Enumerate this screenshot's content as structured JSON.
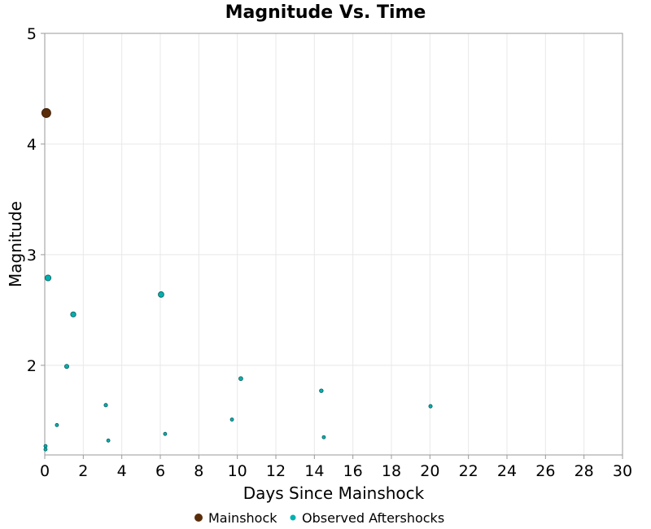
{
  "chart_data": {
    "type": "scatter",
    "title": "Magnitude Vs. Time",
    "xlabel": "Days Since Mainshock",
    "ylabel": "Magnitude",
    "xlim": [
      0,
      30
    ],
    "ylim": [
      1.19,
      5
    ],
    "xticks": [
      0,
      2,
      4,
      6,
      8,
      10,
      12,
      14,
      16,
      18,
      20,
      22,
      24,
      26,
      28,
      30
    ],
    "yticks": [
      2,
      3,
      4,
      5
    ],
    "grid": true,
    "legend_position": "bottom",
    "series": [
      {
        "name": "Mainshock",
        "color": "#5a2d0a",
        "points": [
          [
            0.08,
            4.28
          ]
        ]
      },
      {
        "name": "Observed Aftershocks",
        "color": "#00b0b0",
        "points": [
          [
            0.17,
            2.79
          ],
          [
            1.48,
            2.46
          ],
          [
            1.14,
            1.99
          ],
          [
            6.04,
            2.64
          ],
          [
            10.18,
            1.88
          ],
          [
            14.36,
            1.77
          ],
          [
            20.03,
            1.63
          ],
          [
            3.17,
            1.64
          ],
          [
            0.63,
            1.46
          ],
          [
            9.72,
            1.51
          ],
          [
            6.25,
            1.38
          ],
          [
            3.3,
            1.32
          ],
          [
            14.49,
            1.35
          ],
          [
            0.04,
            1.27
          ],
          [
            0.04,
            1.24
          ]
        ]
      }
    ]
  }
}
